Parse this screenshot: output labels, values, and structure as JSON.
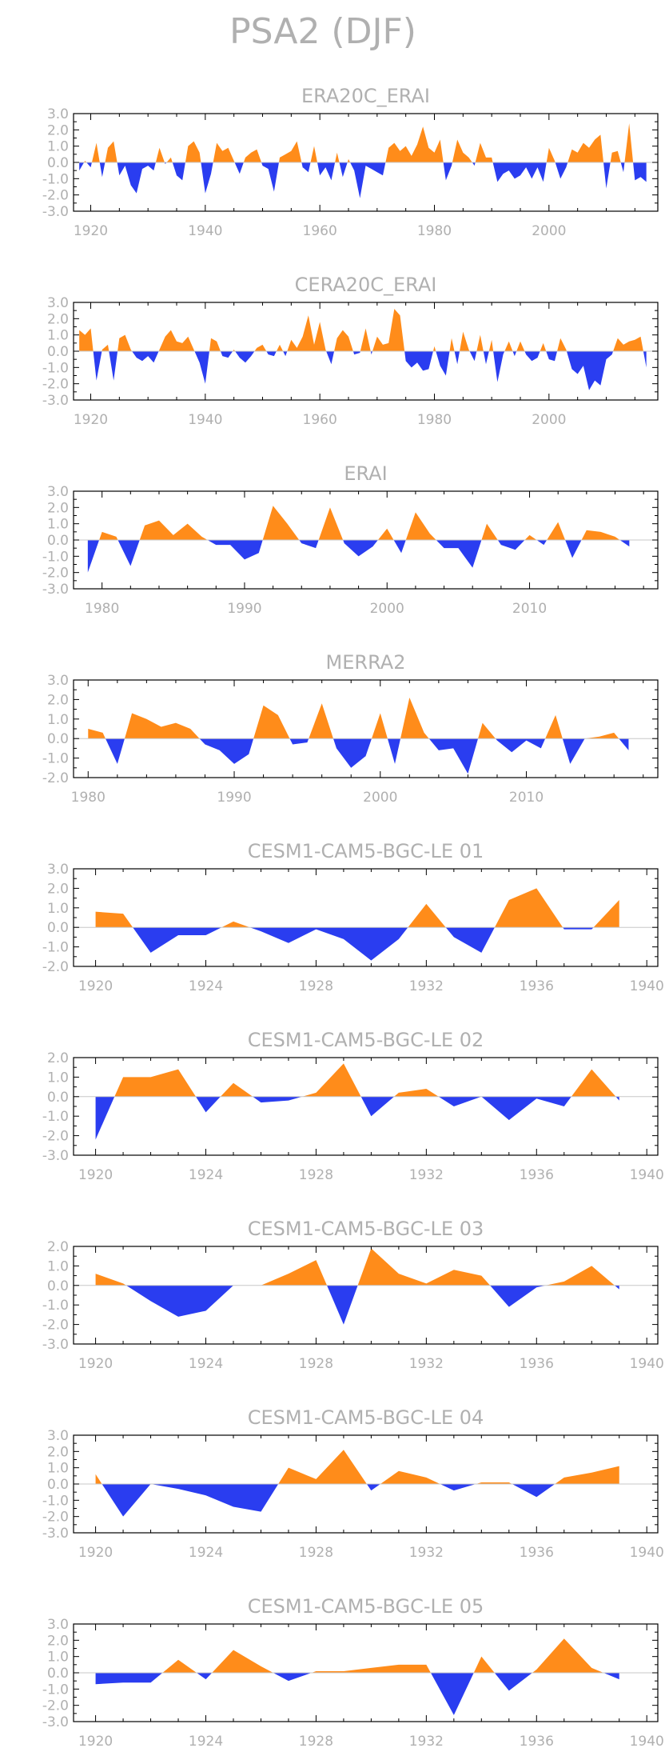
{
  "page_title": "PSA2 (DJF)",
  "colors": {
    "positive": "#ff8c1a",
    "negative": "#2a3df0",
    "axis": "#000000",
    "text": "#b0b0b0"
  },
  "chart_data": [
    {
      "type": "area",
      "title": "ERA20C_ERAI",
      "xlim": [
        1917,
        2019
      ],
      "ylim": [
        -3,
        3
      ],
      "yticks": [
        3.0,
        2.0,
        1.0,
        0.0,
        -1.0,
        -2.0,
        -3.0
      ],
      "ytick_labels": [
        "3.0",
        "2.0",
        "1.0",
        "0.0",
        "-1.0",
        "-2.0",
        "-3.0"
      ],
      "xticks": [
        1920,
        1940,
        1960,
        1980,
        2000
      ],
      "x": [
        1918,
        1919,
        1920,
        1921,
        1922,
        1923,
        1924,
        1925,
        1926,
        1927,
        1928,
        1929,
        1930,
        1931,
        1932,
        1933,
        1934,
        1935,
        1936,
        1937,
        1938,
        1939,
        1940,
        1941,
        1942,
        1943,
        1944,
        1945,
        1946,
        1947,
        1948,
        1949,
        1950,
        1951,
        1952,
        1953,
        1954,
        1955,
        1956,
        1957,
        1958,
        1959,
        1960,
        1961,
        1962,
        1963,
        1964,
        1965,
        1966,
        1967,
        1968,
        1969,
        1970,
        1971,
        1972,
        1973,
        1974,
        1975,
        1976,
        1977,
        1978,
        1979,
        1980,
        1981,
        1982,
        1983,
        1984,
        1985,
        1986,
        1987,
        1988,
        1989,
        1990,
        1991,
        1992,
        1993,
        1994,
        1995,
        1996,
        1997,
        1998,
        1999,
        2000,
        2001,
        2002,
        2003,
        2004,
        2005,
        2006,
        2007,
        2008,
        2009,
        2010,
        2011,
        2012,
        2013,
        2014,
        2015,
        2016,
        2017
      ],
      "y": [
        -0.5,
        0.1,
        -0.3,
        1.2,
        -0.9,
        0.9,
        1.3,
        -0.8,
        -0.2,
        -1.4,
        -1.9,
        -0.4,
        -0.2,
        -0.5,
        0.9,
        -0.1,
        0.3,
        -0.8,
        -1.1,
        1.0,
        1.3,
        0.6,
        -1.9,
        -0.7,
        1.2,
        0.7,
        0.9,
        0.1,
        -0.7,
        0.3,
        0.6,
        0.8,
        -0.2,
        -0.4,
        -1.8,
        0.3,
        0.5,
        0.7,
        1.3,
        -0.3,
        -0.6,
        1.0,
        -0.8,
        -0.3,
        -1.1,
        0.6,
        -0.9,
        0.2,
        -0.5,
        -2.2,
        -0.2,
        -0.4,
        -0.6,
        -0.8,
        0.9,
        1.2,
        0.7,
        1.0,
        0.4,
        1.1,
        2.2,
        0.9,
        0.6,
        1.4,
        -1.1,
        -0.2,
        1.4,
        0.6,
        0.3,
        -0.2,
        1.2,
        0.3,
        0.3,
        -1.2,
        -0.7,
        -0.5,
        -1.0,
        -0.8,
        -0.3,
        -1.0,
        -0.3,
        -1.2,
        0.9,
        0.1,
        -1.0,
        -0.3,
        0.8,
        0.6,
        1.2,
        0.9,
        1.4,
        1.7,
        -1.6,
        0.6,
        0.7,
        -0.6,
        2.4,
        -1.1,
        -0.9,
        -1.2
      ]
    },
    {
      "type": "area",
      "title": "CERA20C_ERAI",
      "xlim": [
        1917,
        2019
      ],
      "ylim": [
        -3,
        3
      ],
      "yticks": [
        3.0,
        2.0,
        1.0,
        0.0,
        -1.0,
        -2.0,
        -3.0
      ],
      "ytick_labels": [
        "3.0",
        "2.0",
        "1.0",
        "0.0",
        "-1.0",
        "-2.0",
        "-3.0"
      ],
      "xticks": [
        1920,
        1940,
        1960,
        1980,
        2000
      ],
      "x": [
        1918,
        1919,
        1920,
        1921,
        1922,
        1923,
        1924,
        1925,
        1926,
        1927,
        1928,
        1929,
        1930,
        1931,
        1932,
        1933,
        1934,
        1935,
        1936,
        1937,
        1938,
        1939,
        1940,
        1941,
        1942,
        1943,
        1944,
        1945,
        1946,
        1947,
        1948,
        1949,
        1950,
        1951,
        1952,
        1953,
        1954,
        1955,
        1956,
        1957,
        1958,
        1959,
        1960,
        1961,
        1962,
        1963,
        1964,
        1965,
        1966,
        1967,
        1968,
        1969,
        1970,
        1971,
        1972,
        1973,
        1974,
        1975,
        1976,
        1977,
        1978,
        1979,
        1980,
        1981,
        1982,
        1983,
        1984,
        1985,
        1986,
        1987,
        1988,
        1989,
        1990,
        1991,
        1992,
        1993,
        1994,
        1995,
        1996,
        1997,
        1998,
        1999,
        2000,
        2001,
        2002,
        2003,
        2004,
        2005,
        2006,
        2007,
        2008,
        2009,
        2010,
        2011,
        2012,
        2013,
        2014,
        2015,
        2016,
        2017
      ],
      "y": [
        1.3,
        1.0,
        1.4,
        -1.8,
        0.1,
        0.4,
        -1.8,
        0.8,
        1.0,
        0.1,
        -0.4,
        -0.6,
        -0.3,
        -0.7,
        0.1,
        0.9,
        1.3,
        0.6,
        0.5,
        0.9,
        0.1,
        -0.7,
        -2.0,
        0.8,
        0.6,
        -0.3,
        -0.4,
        0.1,
        -0.4,
        -0.7,
        -0.3,
        0.2,
        0.4,
        -0.2,
        -0.3,
        0.4,
        -0.3,
        0.7,
        0.2,
        0.9,
        2.2,
        0.4,
        1.8,
        0.1,
        -0.8,
        0.8,
        1.3,
        0.9,
        -0.2,
        -0.1,
        1.4,
        -0.2,
        0.9,
        0.4,
        0.5,
        2.6,
        2.2,
        -0.6,
        -1.0,
        -0.7,
        -1.2,
        -1.1,
        0.3,
        -0.9,
        -1.5,
        0.8,
        -0.8,
        1.2,
        0.1,
        -0.6,
        1.0,
        -0.8,
        0.7,
        -1.9,
        -0.2,
        0.6,
        -0.3,
        0.6,
        -0.2,
        -0.6,
        -0.4,
        0.5,
        -0.5,
        -0.6,
        0.8,
        0.1,
        -1.1,
        -1.4,
        -0.9,
        -2.4,
        -1.8,
        -2.1,
        -0.5,
        -0.2,
        0.8,
        0.4,
        0.6,
        0.7,
        0.9,
        -1.0
      ]
    },
    {
      "type": "area",
      "title": "ERAI",
      "xlim": [
        1978,
        2019
      ],
      "ylim": [
        -3,
        3
      ],
      "yticks": [
        3.0,
        2.0,
        1.0,
        0.0,
        -1.0,
        -2.0,
        -3.0
      ],
      "ytick_labels": [
        "3.0",
        "2.0",
        "1.0",
        "0.0",
        "-1.0",
        "-2.0",
        "-3.0"
      ],
      "xticks": [
        1980,
        1990,
        2000,
        2010
      ],
      "x": [
        1979,
        1980,
        1981,
        1982,
        1983,
        1984,
        1985,
        1986,
        1987,
        1988,
        1989,
        1990,
        1991,
        1992,
        1993,
        1994,
        1995,
        1996,
        1997,
        1998,
        1999,
        2000,
        2001,
        2002,
        2003,
        2004,
        2005,
        2006,
        2007,
        2008,
        2009,
        2010,
        2011,
        2012,
        2013,
        2014,
        2015,
        2016,
        2017
      ],
      "y": [
        -2.0,
        0.5,
        0.2,
        -1.6,
        0.9,
        1.2,
        0.3,
        1.0,
        0.2,
        -0.3,
        -0.3,
        -1.2,
        -0.8,
        2.1,
        1.0,
        -0.2,
        -0.5,
        2.0,
        -0.2,
        -1.0,
        -0.4,
        0.7,
        -0.8,
        1.7,
        0.4,
        -0.5,
        -0.5,
        -1.7,
        1.0,
        -0.3,
        -0.6,
        0.3,
        -0.3,
        1.1,
        -1.1,
        0.6,
        0.5,
        0.2,
        -0.4
      ]
    },
    {
      "type": "area",
      "title": "MERRA2",
      "xlim": [
        1979,
        2019
      ],
      "ylim": [
        -2,
        3
      ],
      "yticks": [
        3.0,
        2.0,
        1.0,
        0.0,
        -1.0,
        -2.0
      ],
      "ytick_labels": [
        "3.0",
        "2.0",
        "1.0",
        "0.0",
        "-1.0",
        "-2.0"
      ],
      "xticks": [
        1980,
        1990,
        2000,
        2010
      ],
      "x": [
        1980,
        1981,
        1982,
        1983,
        1984,
        1985,
        1986,
        1987,
        1988,
        1989,
        1990,
        1991,
        1992,
        1993,
        1994,
        1995,
        1996,
        1997,
        1998,
        1999,
        2000,
        2001,
        2002,
        2003,
        2004,
        2005,
        2006,
        2007,
        2008,
        2009,
        2010,
        2011,
        2012,
        2013,
        2014,
        2015,
        2016,
        2017
      ],
      "y": [
        0.5,
        0.3,
        -1.3,
        1.3,
        1.0,
        0.6,
        0.8,
        0.5,
        -0.3,
        -0.6,
        -1.3,
        -0.8,
        1.7,
        1.2,
        -0.3,
        -0.2,
        1.8,
        -0.5,
        -1.5,
        -0.9,
        1.3,
        -1.3,
        2.1,
        0.3,
        -0.6,
        -0.5,
        -1.8,
        0.8,
        -0.1,
        -0.7,
        -0.1,
        -0.5,
        1.2,
        -1.3,
        0.0,
        0.1,
        0.3,
        -0.6
      ]
    },
    {
      "type": "area",
      "title": "CESM1-CAM5-BGC-LE 01",
      "xlim": [
        1919.2,
        1940.4
      ],
      "ylim": [
        -2,
        3
      ],
      "yticks": [
        3.0,
        2.0,
        1.0,
        0.0,
        -1.0,
        -2.0
      ],
      "ytick_labels": [
        "3.0",
        "2.0",
        "1.0",
        "0.0",
        "-1.0",
        "-2.0"
      ],
      "xticks": [
        1920,
        1924,
        1928,
        1932,
        1936,
        1940
      ],
      "x": [
        1920,
        1921,
        1922,
        1923,
        1924,
        1925,
        1926,
        1927,
        1928,
        1929,
        1930,
        1931,
        1932,
        1933,
        1934,
        1935,
        1936,
        1937,
        1938,
        1939
      ],
      "y": [
        0.8,
        0.7,
        -1.3,
        -0.4,
        -0.4,
        0.3,
        -0.2,
        -0.8,
        -0.1,
        -0.6,
        -1.7,
        -0.6,
        1.2,
        -0.5,
        -1.3,
        1.4,
        2.0,
        -0.1,
        -0.1,
        1.4
      ]
    },
    {
      "type": "area",
      "title": "CESM1-CAM5-BGC-LE 02",
      "xlim": [
        1919.2,
        1940.4
      ],
      "ylim": [
        -3,
        2
      ],
      "yticks": [
        2.0,
        1.0,
        0.0,
        -1.0,
        -2.0,
        -3.0
      ],
      "ytick_labels": [
        "2.0",
        "1.0",
        "0.0",
        "-1.0",
        "-2.0",
        "-3.0"
      ],
      "xticks": [
        1920,
        1924,
        1928,
        1932,
        1936,
        1940
      ],
      "x": [
        1920,
        1921,
        1922,
        1923,
        1924,
        1925,
        1926,
        1927,
        1928,
        1929,
        1930,
        1931,
        1932,
        1933,
        1934,
        1935,
        1936,
        1937,
        1938,
        1939
      ],
      "y": [
        -2.2,
        1.0,
        1.0,
        1.4,
        -0.8,
        0.7,
        -0.3,
        -0.2,
        0.2,
        1.7,
        -1.0,
        0.2,
        0.4,
        -0.5,
        0.0,
        -1.2,
        -0.1,
        -0.5,
        1.4,
        -0.2
      ]
    },
    {
      "type": "area",
      "title": "CESM1-CAM5-BGC-LE 03",
      "xlim": [
        1919.2,
        1940.4
      ],
      "ylim": [
        -3,
        2
      ],
      "yticks": [
        2.0,
        1.0,
        0.0,
        -1.0,
        -2.0,
        -3.0
      ],
      "ytick_labels": [
        "2.0",
        "1.0",
        "0.0",
        "-1.0",
        "-2.0",
        "-3.0"
      ],
      "xticks": [
        1920,
        1924,
        1928,
        1932,
        1936,
        1940
      ],
      "x": [
        1920,
        1921,
        1922,
        1923,
        1924,
        1925,
        1926,
        1927,
        1928,
        1929,
        1930,
        1931,
        1932,
        1933,
        1934,
        1935,
        1936,
        1937,
        1938,
        1939
      ],
      "y": [
        0.6,
        0.1,
        -0.8,
        -1.6,
        -1.3,
        0.0,
        0.0,
        0.6,
        1.3,
        -2.0,
        1.9,
        0.6,
        0.1,
        0.8,
        0.5,
        -1.1,
        -0.1,
        0.2,
        1.0,
        -0.2
      ]
    },
    {
      "type": "area",
      "title": "CESM1-CAM5-BGC-LE 04",
      "xlim": [
        1919.2,
        1940.4
      ],
      "ylim": [
        -3,
        3
      ],
      "yticks": [
        3.0,
        2.0,
        1.0,
        0.0,
        -1.0,
        -2.0,
        -3.0
      ],
      "ytick_labels": [
        "3.0",
        "2.0",
        "1.0",
        "0.0",
        "-1.0",
        "-2.0",
        "-3.0"
      ],
      "xticks": [
        1920,
        1924,
        1928,
        1932,
        1936,
        1940
      ],
      "x": [
        1920,
        1921,
        1922,
        1923,
        1924,
        1925,
        1926,
        1927,
        1928,
        1929,
        1930,
        1931,
        1932,
        1933,
        1934,
        1935,
        1936,
        1937,
        1938,
        1939
      ],
      "y": [
        0.6,
        -2.0,
        0.0,
        -0.3,
        -0.7,
        -1.4,
        -1.7,
        1.0,
        0.3,
        2.1,
        -0.4,
        0.8,
        0.4,
        -0.4,
        0.1,
        0.1,
        -0.8,
        0.4,
        0.7,
        1.1
      ]
    },
    {
      "type": "area",
      "title": "CESM1-CAM5-BGC-LE 05",
      "xlim": [
        1919.2,
        1940.4
      ],
      "ylim": [
        -3,
        3
      ],
      "yticks": [
        3.0,
        2.0,
        1.0,
        0.0,
        -1.0,
        -2.0,
        -3.0
      ],
      "ytick_labels": [
        "3.0",
        "2.0",
        "1.0",
        "0.0",
        "-1.0",
        "-2.0",
        "-3.0"
      ],
      "xticks": [
        1920,
        1924,
        1928,
        1932,
        1936,
        1940
      ],
      "x": [
        1920,
        1921,
        1922,
        1923,
        1924,
        1925,
        1926,
        1927,
        1928,
        1929,
        1930,
        1931,
        1932,
        1933,
        1934,
        1935,
        1936,
        1937,
        1938,
        1939
      ],
      "y": [
        -0.7,
        -0.6,
        -0.6,
        0.8,
        -0.4,
        1.4,
        0.4,
        -0.5,
        0.1,
        0.1,
        0.3,
        0.5,
        0.5,
        -2.6,
        1.0,
        -1.1,
        0.2,
        2.1,
        0.3,
        -0.4
      ]
    }
  ]
}
